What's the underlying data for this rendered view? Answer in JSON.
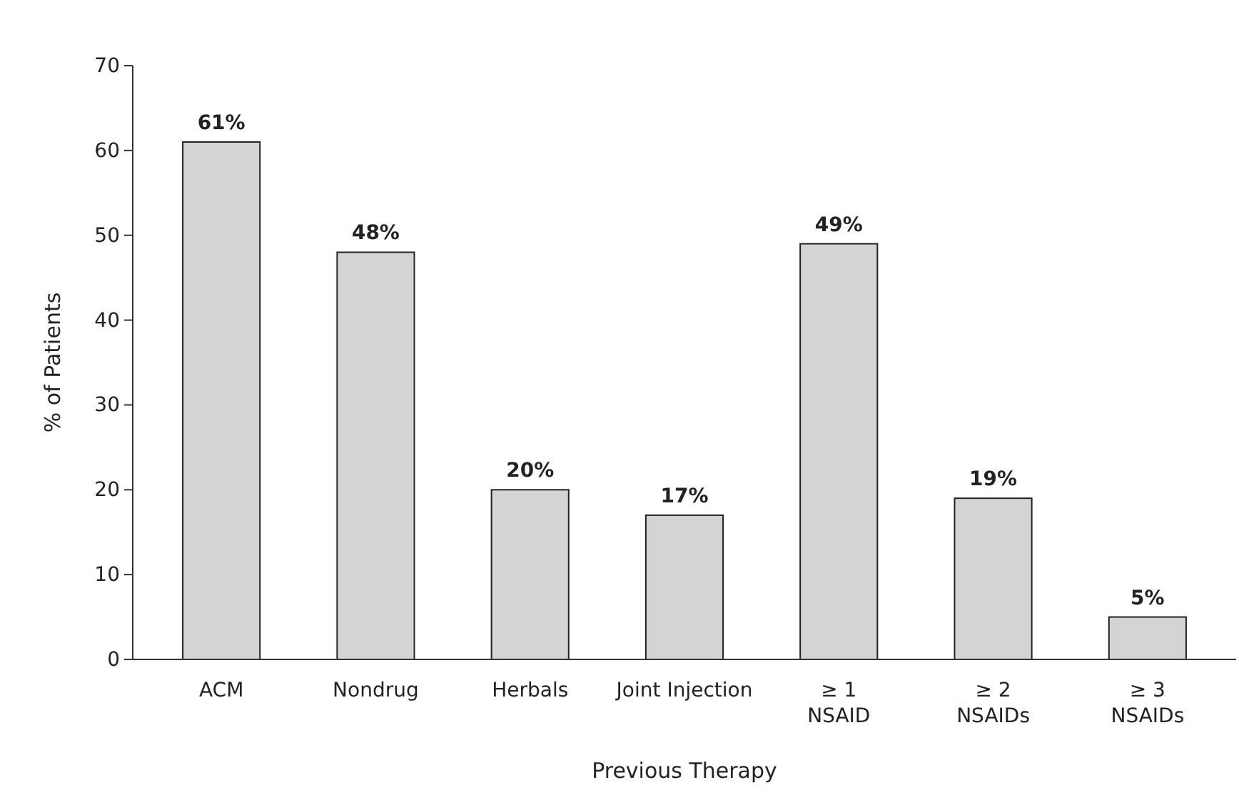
{
  "chart_data": {
    "type": "bar",
    "xlabel": "Previous Therapy",
    "ylabel": "% of Patients",
    "categories": [
      "ACM",
      "Nondrug",
      "Herbals",
      "Joint Injection",
      "≥ 1\nNSAID",
      "≥ 2\nNSAIDs",
      "≥ 3\nNSAIDs"
    ],
    "values": [
      61,
      48,
      20,
      17,
      49,
      19,
      5
    ],
    "value_labels": [
      "61%",
      "48%",
      "20%",
      "17%",
      "49%",
      "19%",
      "5%"
    ],
    "color": "#d4d4d4",
    "ylim": [
      0,
      70
    ],
    "yticks": [
      0,
      10,
      20,
      30,
      40,
      50,
      60,
      70
    ],
    "grid": false
  }
}
